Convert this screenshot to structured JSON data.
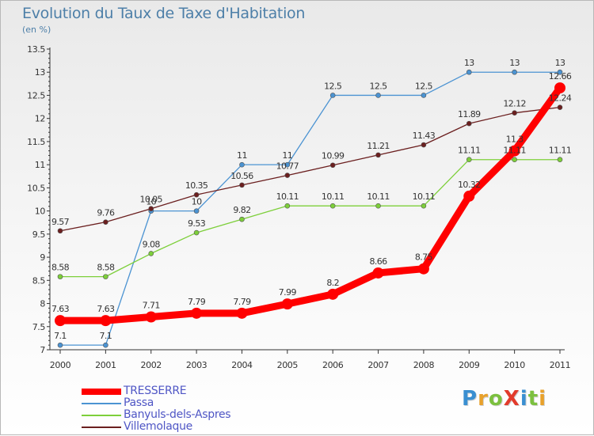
{
  "title": "Evolution du Taux de Taxe d'Habitation",
  "subtitle": "(en %)",
  "logo": {
    "text": "ProXiti",
    "letters": [
      {
        "ch": "P",
        "color": "#3a8fd1"
      },
      {
        "ch": "r",
        "color": "#e8a12b"
      },
      {
        "ch": "o",
        "color": "#7cc03f"
      },
      {
        "ch": "X",
        "color": "#e23b2c"
      },
      {
        "ch": "i",
        "color": "#3a8fd1"
      },
      {
        "ch": "t",
        "color": "#7cc03f"
      },
      {
        "ch": "i",
        "color": "#e8a12b"
      }
    ]
  },
  "chart_data": {
    "type": "line",
    "title": "Evolution du Taux de Taxe d'Habitation",
    "subtitle": "(en %)",
    "x": [
      2000,
      2001,
      2002,
      2003,
      2004,
      2005,
      2006,
      2007,
      2008,
      2009,
      2010,
      2011
    ],
    "x_tick_labels": [
      "2000",
      "2001",
      "2002",
      "2003",
      "2004",
      "2005",
      "2006",
      "2007",
      "2008",
      "2009",
      "2010",
      "2011"
    ],
    "y_tick_labels": [
      "7",
      "7.5",
      "8",
      "8.5",
      "9",
      "9.5",
      "10",
      "10.5",
      "11",
      "11.5",
      "12",
      "12.5",
      "13",
      "13.5"
    ],
    "ylim": [
      7,
      13.5
    ],
    "grid": false,
    "legend_position": "bottom-left",
    "series": [
      {
        "name": "TRESSERRE",
        "color": "#ff0000",
        "emphasis": "thick",
        "values": [
          7.63,
          7.63,
          7.71,
          7.79,
          7.79,
          7.99,
          8.2,
          8.66,
          8.75,
          10.32,
          11.3,
          12.66
        ],
        "labels": [
          "7.63",
          "7.63",
          "7.71",
          "7.79",
          "7.79",
          "7.99",
          "8.2",
          "8.66",
          "8.75",
          "10.32",
          "11.3",
          "12.66"
        ]
      },
      {
        "name": "Passa",
        "color": "#4b93d2",
        "values": [
          7.1,
          7.1,
          10,
          10,
          11,
          11,
          12.5,
          12.5,
          12.5,
          13,
          13,
          13
        ],
        "labels": [
          "7.1",
          "7.1",
          "10",
          "10",
          "11",
          "11",
          "12.5",
          "12.5",
          "12.5",
          "13",
          "13",
          "13"
        ]
      },
      {
        "name": "Banyuls-dels-Aspres",
        "color": "#7dcf3a",
        "values": [
          8.58,
          8.58,
          9.08,
          9.53,
          9.82,
          10.11,
          10.11,
          10.11,
          10.11,
          11.11,
          11.11,
          11.11
        ],
        "labels": [
          "8.58",
          "8.58",
          "9.08",
          "9.53",
          "9.82",
          "10.11",
          "10.11",
          "10.11",
          "10.11",
          "11.11",
          "11.11",
          "11.11"
        ]
      },
      {
        "name": "Villemolaque",
        "color": "#6b1f1f",
        "values": [
          9.57,
          9.76,
          10.05,
          10.35,
          10.56,
          10.77,
          10.99,
          11.21,
          11.43,
          11.89,
          12.12,
          12.24
        ],
        "labels": [
          "9.57",
          "9.76",
          "10.05",
          "10.35",
          "10.56",
          "10.77",
          "10.99",
          "11.21",
          "11.43",
          "11.89",
          "12.12",
          "12.24"
        ]
      }
    ]
  }
}
